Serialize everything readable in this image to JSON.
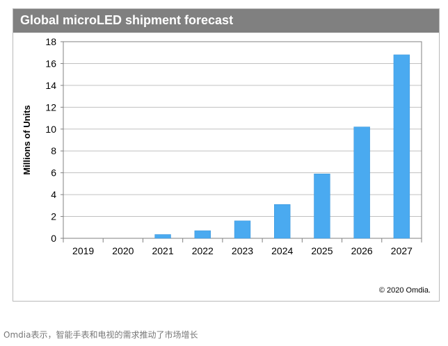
{
  "chart_title": "Global microLED shipment forecast",
  "copyright": "© 2020 Omdia.",
  "caption": "Omdia表示，智能手表和电视的需求推动了市场增长",
  "colors": {
    "title_bar": "#808080",
    "bar": "#4aaaf0",
    "grid": "#c0c0c0"
  },
  "chart_data": {
    "type": "bar",
    "title": "Global microLED shipment forecast",
    "xlabel": "",
    "ylabel": "Millions of Units",
    "categories": [
      "2019",
      "2020",
      "2021",
      "2022",
      "2023",
      "2024",
      "2025",
      "2026",
      "2027"
    ],
    "values": [
      0,
      0,
      0.35,
      0.7,
      1.6,
      3.1,
      5.9,
      10.2,
      16.8
    ],
    "ylim": [
      0,
      18
    ],
    "yticks": [
      0,
      2,
      4,
      6,
      8,
      10,
      12,
      14,
      16,
      18
    ],
    "grid": true,
    "legend": "none"
  }
}
